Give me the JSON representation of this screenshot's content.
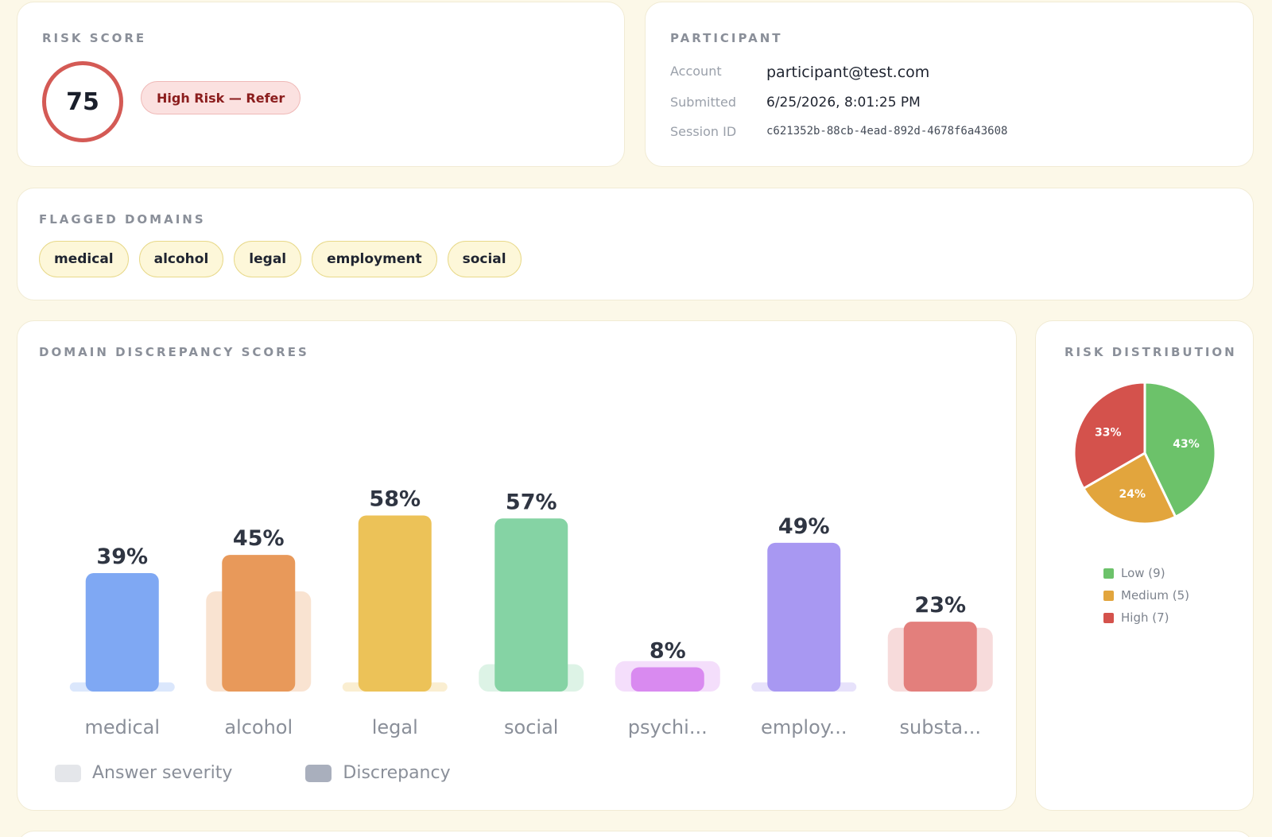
{
  "risk": {
    "title": "RISK SCORE",
    "score": "75",
    "badge": "High Risk — Refer",
    "color": "#d45a55"
  },
  "participant": {
    "title": "PARTICIPANT",
    "account_label": "Account",
    "account_value": "participant@test.com",
    "submitted_label": "Submitted",
    "submitted_value": "6/25/2026, 8:01:25 PM",
    "session_label": "Session ID",
    "session_value": "c621352b-88cb-4ead-892d-4678f6a43608"
  },
  "flagged": {
    "title": "FLAGGED DOMAINS",
    "tags": [
      "medical",
      "alcohol",
      "legal",
      "employment",
      "social"
    ]
  },
  "discrepancy": {
    "title": "DOMAIN DISCREPANCY SCORES",
    "legend": [
      "Answer severity",
      "Discrepancy"
    ],
    "legend_colors": [
      "#e4e6ea",
      "#a9afbd"
    ]
  },
  "distribution": {
    "title": "RISK DISTRIBUTION",
    "legend": [
      "Low (9)",
      "Medium (5)",
      "High (7)"
    ]
  },
  "chart_data": [
    {
      "type": "bar",
      "categories": [
        "medical",
        "alcohol",
        "legal",
        "social",
        "psychi...",
        "employ...",
        "substa..."
      ],
      "series": [
        {
          "name": "Answer severity",
          "values": [
            3,
            33,
            3,
            9,
            10,
            3,
            21
          ]
        },
        {
          "name": "Discrepancy",
          "values": [
            39,
            45,
            58,
            57,
            8,
            49,
            23
          ]
        }
      ],
      "data_labels": [
        "39%",
        "45%",
        "58%",
        "57%",
        "8%",
        "49%",
        "23%"
      ],
      "colors": [
        "#7fa8f3",
        "#e8995a",
        "#ecc258",
        "#85d3a4",
        "#d98af0",
        "#a898f2",
        "#e37f7c"
      ],
      "ylim": [
        0,
        100
      ],
      "grid": false,
      "legend": "bottom-left"
    },
    {
      "type": "pie",
      "labels": [
        "Low",
        "Medium",
        "High"
      ],
      "values": [
        9,
        5,
        7
      ],
      "percent_labels": [
        "43%",
        "24%",
        "33%"
      ],
      "colors": [
        "#6cc26a",
        "#e2a53d",
        "#d4524c"
      ],
      "legend": "bottom"
    }
  ]
}
